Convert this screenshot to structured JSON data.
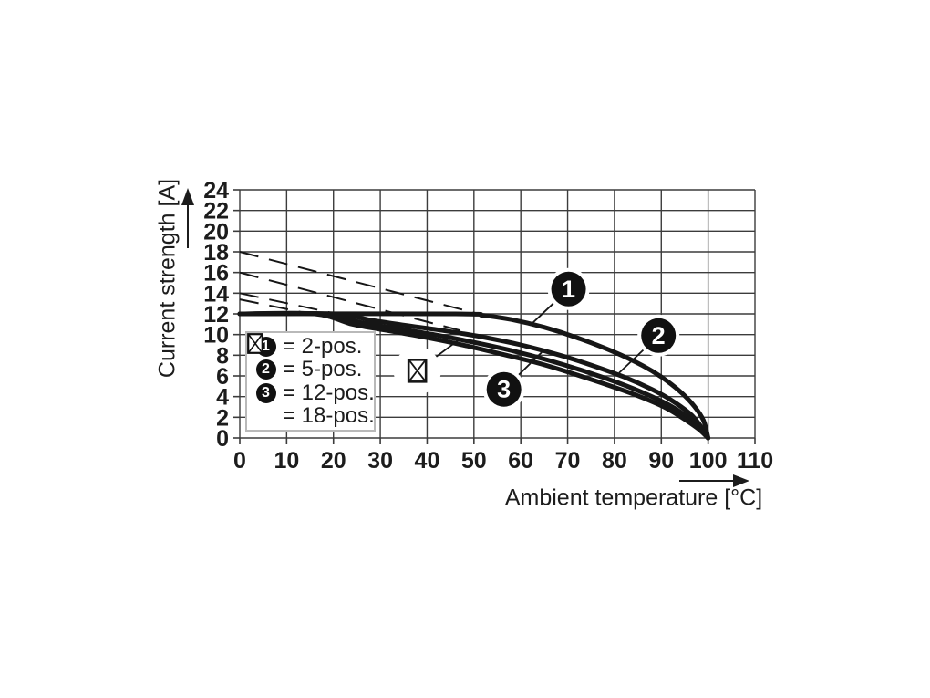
{
  "figure": {
    "background": "#ffffff",
    "ink_color": "#1c1c1c",
    "grid_color": "#3c3c3c",
    "curve_color": "#161616",
    "callout_fill": "#111111",
    "callout_text_color": "#ffffff"
  },
  "chart_data": {
    "type": "line",
    "title": "",
    "xlabel": "Ambient temperature [°C]",
    "ylabel": "Current strength [A]",
    "xlim": [
      0,
      110
    ],
    "ylim": [
      0,
      24
    ],
    "x_ticks": [
      0,
      10,
      20,
      30,
      40,
      50,
      60,
      70,
      80,
      90,
      100,
      110
    ],
    "y_ticks": [
      0,
      2,
      4,
      6,
      8,
      10,
      12,
      14,
      16,
      18,
      20,
      22,
      24
    ],
    "grid": true,
    "series": [
      {
        "name": "2-pos.",
        "marker": "1",
        "style": "solid",
        "points": [
          [
            0,
            12
          ],
          [
            46,
            12
          ],
          [
            52,
            11.85
          ],
          [
            58,
            11.45
          ],
          [
            65,
            10.7
          ],
          [
            72,
            9.7
          ],
          [
            80,
            8.3
          ],
          [
            86,
            7.0
          ],
          [
            90,
            5.9
          ],
          [
            94,
            4.5
          ],
          [
            97,
            3.1
          ],
          [
            99,
            1.7
          ],
          [
            100,
            0
          ]
        ]
      },
      {
        "name": "5-pos.",
        "marker": "2",
        "style": "solid",
        "points": [
          [
            0,
            12
          ],
          [
            20,
            12
          ],
          [
            28,
            11.4
          ],
          [
            36,
            10.85
          ],
          [
            44,
            10.35
          ],
          [
            52,
            9.75
          ],
          [
            60,
            9.0
          ],
          [
            68,
            8.05
          ],
          [
            75,
            7.05
          ],
          [
            82,
            5.9
          ],
          [
            88,
            4.7
          ],
          [
            92,
            3.7
          ],
          [
            96,
            2.4
          ],
          [
            98,
            1.4
          ],
          [
            100,
            0
          ]
        ]
      },
      {
        "name": "12-pos.",
        "marker": "3",
        "style": "solid",
        "points": [
          [
            0,
            12
          ],
          [
            18,
            12
          ],
          [
            26,
            11.15
          ],
          [
            34,
            10.55
          ],
          [
            42,
            9.95
          ],
          [
            50,
            9.25
          ],
          [
            58,
            8.45
          ],
          [
            66,
            7.5
          ],
          [
            74,
            6.4
          ],
          [
            81,
            5.3
          ],
          [
            87,
            4.2
          ],
          [
            92,
            3.1
          ],
          [
            96,
            1.9
          ],
          [
            98,
            1.1
          ],
          [
            100,
            0
          ]
        ]
      },
      {
        "name": "18-pos.",
        "marker": "crossed-box",
        "style": "solid",
        "points": [
          [
            0,
            12
          ],
          [
            16,
            12
          ],
          [
            24,
            11.0
          ],
          [
            32,
            10.35
          ],
          [
            40,
            9.7
          ],
          [
            48,
            8.95
          ],
          [
            56,
            8.1
          ],
          [
            64,
            7.2
          ],
          [
            72,
            6.1
          ],
          [
            80,
            4.9
          ],
          [
            86,
            3.9
          ],
          [
            91,
            2.9
          ],
          [
            95,
            1.8
          ],
          [
            98,
            0.85
          ],
          [
            100,
            0
          ]
        ]
      }
    ],
    "dashed_derating_lines": [
      {
        "series": "2-pos.",
        "points": [
          [
            0,
            18.0
          ],
          [
            51,
            12.0
          ]
        ]
      },
      {
        "series": "5-pos.",
        "points": [
          [
            0,
            16.0
          ],
          [
            47,
            10.4
          ]
        ]
      },
      {
        "series": "12-pos.",
        "points": [
          [
            0,
            14.0
          ],
          [
            42,
            9.95
          ]
        ]
      },
      {
        "series": "18-pos.",
        "points": [
          [
            0,
            13.4
          ],
          [
            38,
            9.85
          ]
        ]
      }
    ],
    "callouts": [
      {
        "label": "1",
        "shape": "circle",
        "x": 70.2,
        "y": 14.4,
        "target_x": 62.0,
        "target_y": 10.9
      },
      {
        "label": "2",
        "shape": "circle",
        "x": 89.4,
        "y": 9.9,
        "target_x": 81.0,
        "target_y": 6.3
      },
      {
        "label": "3",
        "shape": "circle",
        "x": 56.4,
        "y": 4.7,
        "target_x": 64.5,
        "target_y": 8.3
      },
      {
        "label": "18-pos-marker",
        "shape": "crossed-box",
        "x": 37.9,
        "y": 6.5,
        "target_x": 46.5,
        "target_y": 9.4
      }
    ],
    "legend": {
      "position": "inside-lower-left",
      "entries": [
        {
          "symbol": "1",
          "label": "= 2-pos."
        },
        {
          "symbol": "2",
          "label": "= 5-pos."
        },
        {
          "symbol": "3",
          "label": "= 12-pos."
        },
        {
          "symbol": "crossed-box",
          "label": "= 18-pos."
        }
      ]
    }
  }
}
